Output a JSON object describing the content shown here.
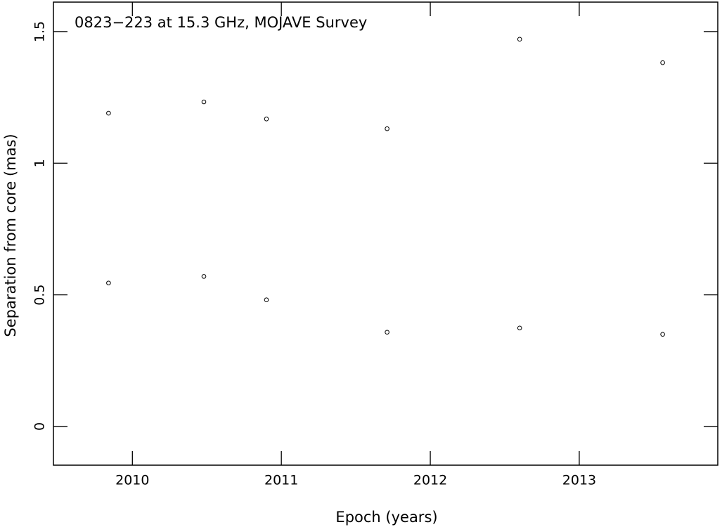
{
  "chart_data": {
    "type": "scatter",
    "title": "0823−223 at 15.3 GHz, MOJAVE Survey",
    "xlabel": "Epoch (years)",
    "ylabel": "Separation from core (mas)",
    "x": [
      2009.84,
      2010.48,
      2010.9,
      2011.71,
      2012.6,
      2013.56
    ],
    "series": [
      {
        "color": "#000000",
        "values": [
          1.19,
          1.233,
          1.168,
          1.131,
          1.471,
          1.382
        ]
      },
      {
        "color": "#000000",
        "values": [
          0.545,
          0.57,
          0.481,
          0.358,
          0.374,
          0.35
        ]
      }
    ],
    "xlim": [
      2009.47,
      2013.93
    ],
    "xticks": [
      2010,
      2011,
      2012,
      2013
    ],
    "ylim": [
      -0.147,
      1.612
    ],
    "yticks": [
      0,
      0.5,
      1,
      1.5
    ],
    "grid": false
  }
}
